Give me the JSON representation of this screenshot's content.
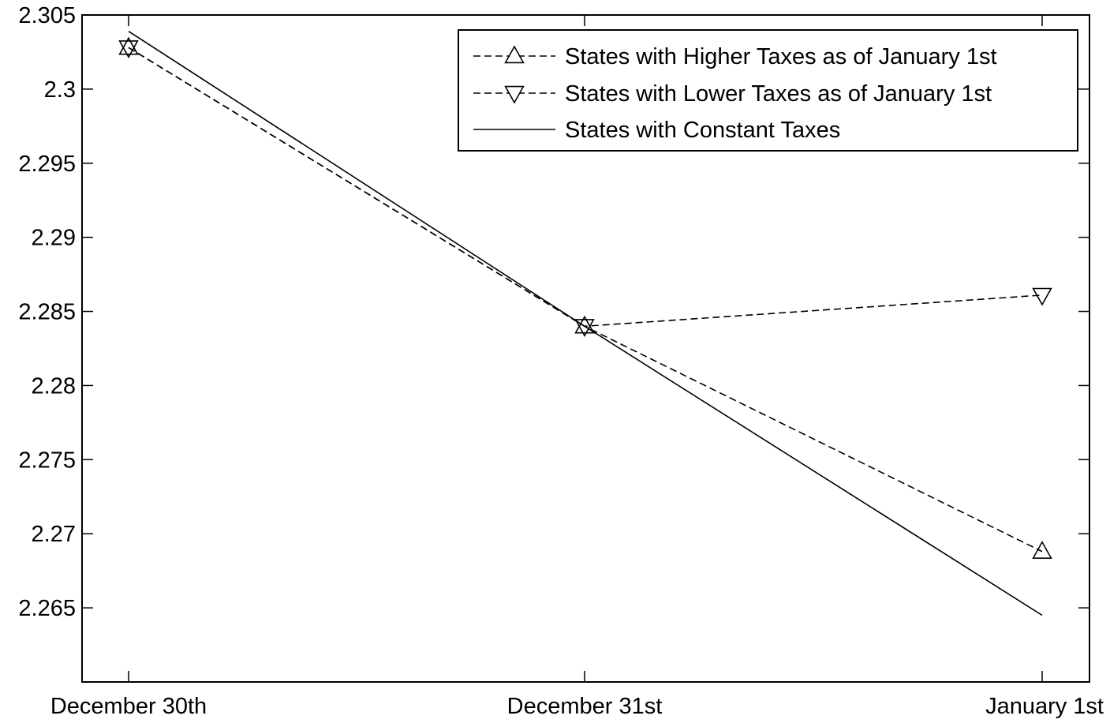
{
  "chart_data": {
    "type": "line",
    "title": "",
    "xlabel": "",
    "ylabel": "",
    "categories": [
      "December 30th",
      "December 31st",
      "January 1st"
    ],
    "ylim": [
      2.26,
      2.305
    ],
    "yticks": [
      2.265,
      2.27,
      2.275,
      2.28,
      2.285,
      2.29,
      2.295,
      2.3,
      2.305
    ],
    "ytick_labels": [
      "2.265",
      "2.27",
      "2.275",
      "2.28",
      "2.285",
      "2.29",
      "2.295",
      "2.3",
      "2.305"
    ],
    "grid": false,
    "legend_position": "top-right",
    "series": [
      {
        "name": "States with Higher Taxes as of January 1st",
        "values": [
          2.3028,
          2.284,
          2.2688
        ],
        "line_style": "dashed",
        "marker": "triangle-up",
        "color": "#000000"
      },
      {
        "name": "States with Lower Taxes as of January 1st",
        "values": [
          2.3028,
          2.284,
          2.2861
        ],
        "line_style": "dashed",
        "marker": "triangle-down",
        "color": "#000000"
      },
      {
        "name": "States with Constant Taxes",
        "values": [
          2.3039,
          2.284,
          2.2645
        ],
        "line_style": "solid",
        "marker": "none",
        "color": "#000000"
      }
    ]
  }
}
